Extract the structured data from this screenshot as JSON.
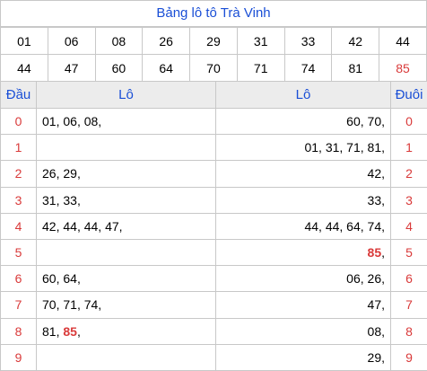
{
  "title": "Bảng lô tô Trà Vinh",
  "numbers": {
    "row1": [
      "01",
      "06",
      "08",
      "26",
      "29",
      "31",
      "33",
      "42",
      "44"
    ],
    "row2": [
      "44",
      "47",
      "60",
      "64",
      "70",
      "71",
      "74",
      "81",
      "85"
    ],
    "highlight_value": "85"
  },
  "headers": {
    "dau": "Đầu",
    "lo_left": "Lô",
    "lo_right": "Lô",
    "duoi": "Đuôi"
  },
  "rows": [
    {
      "dau": "0",
      "left": [
        "01",
        "06",
        "08"
      ],
      "right": [
        "60",
        "70"
      ],
      "duoi": "0"
    },
    {
      "dau": "1",
      "left": [],
      "right": [
        "01",
        "31",
        "71",
        "81"
      ],
      "duoi": "1"
    },
    {
      "dau": "2",
      "left": [
        "26",
        "29"
      ],
      "right": [
        "42"
      ],
      "duoi": "2"
    },
    {
      "dau": "3",
      "left": [
        "31",
        "33"
      ],
      "right": [
        "33"
      ],
      "duoi": "3"
    },
    {
      "dau": "4",
      "left": [
        "42",
        "44",
        "44",
        "47"
      ],
      "right": [
        "44",
        "44",
        "64",
        "74"
      ],
      "duoi": "4"
    },
    {
      "dau": "5",
      "left": [],
      "right": [
        "85"
      ],
      "duoi": "5"
    },
    {
      "dau": "6",
      "left": [
        "60",
        "64"
      ],
      "right": [
        "06",
        "26"
      ],
      "duoi": "6"
    },
    {
      "dau": "7",
      "left": [
        "70",
        "71",
        "74"
      ],
      "right": [
        "47"
      ],
      "duoi": "7"
    },
    {
      "dau": "8",
      "left": [
        "81",
        "85"
      ],
      "right": [
        "08"
      ],
      "duoi": "8"
    },
    {
      "dau": "9",
      "left": [],
      "right": [
        "29"
      ],
      "duoi": "9"
    }
  ],
  "colors": {
    "title": "#1a4fd6",
    "index": "#d93a3a",
    "highlight": "#d93a3a",
    "header_bg": "#ececec",
    "border": "#c8c8c8"
  }
}
